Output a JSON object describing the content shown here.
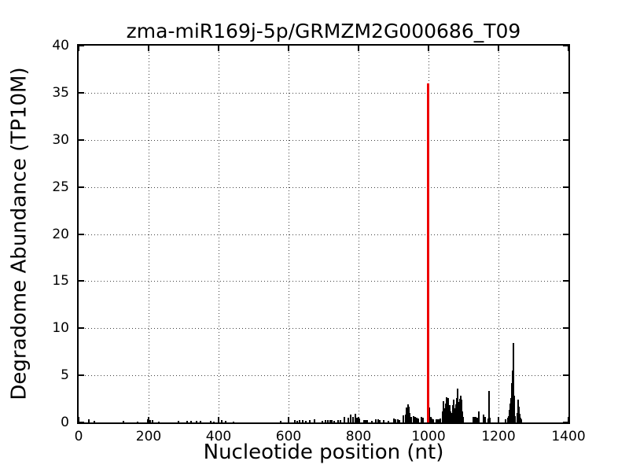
{
  "figure": {
    "background": "#ffffff",
    "frame_color": "#000000"
  },
  "chart_data": {
    "type": "bar",
    "title": "zma-miR169j-5p/GRMZM2G000686_T09",
    "xlabel": "Nucleotide position (nt)",
    "ylabel": "Degradome Abundance (TP10M)",
    "xlim": [
      0,
      1400
    ],
    "ylim": [
      0,
      40
    ],
    "xticks": [
      0,
      200,
      400,
      600,
      800,
      1000,
      1200,
      1400
    ],
    "yticks": [
      0,
      5,
      10,
      15,
      20,
      25,
      30,
      35,
      40
    ],
    "grid": "dotted",
    "grid_color": "#555555",
    "bar_color": "#000000",
    "highlight_color": "#ee0000",
    "highlight_point": {
      "x": 999,
      "y": 36.0,
      "meaning": "miRNA cleavage site peak"
    },
    "points": [
      [
        30,
        0.3
      ],
      [
        45,
        0.15
      ],
      [
        128,
        0.15
      ],
      [
        169,
        0.12
      ],
      [
        198,
        0.3
      ],
      [
        205,
        0.22
      ],
      [
        212,
        0.22
      ],
      [
        230,
        0.12
      ],
      [
        285,
        0.15
      ],
      [
        310,
        0.15
      ],
      [
        322,
        0.18
      ],
      [
        337,
        0.15
      ],
      [
        348,
        0.2
      ],
      [
        377,
        0.15
      ],
      [
        387,
        0.12
      ],
      [
        400,
        0.35
      ],
      [
        408,
        0.25
      ],
      [
        420,
        0.15
      ],
      [
        443,
        0.12
      ],
      [
        577,
        0.2
      ],
      [
        600,
        0.42
      ],
      [
        618,
        0.25
      ],
      [
        625,
        0.2
      ],
      [
        632,
        0.22
      ],
      [
        640,
        0.28
      ],
      [
        650,
        0.2
      ],
      [
        660,
        0.25
      ],
      [
        674,
        0.32
      ],
      [
        697,
        0.2
      ],
      [
        705,
        0.25
      ],
      [
        712,
        0.22
      ],
      [
        718,
        0.25
      ],
      [
        724,
        0.22
      ],
      [
        730,
        0.2
      ],
      [
        742,
        0.22
      ],
      [
        748,
        0.25
      ],
      [
        760,
        0.55
      ],
      [
        770,
        0.5
      ],
      [
        778,
        0.8
      ],
      [
        785,
        0.6
      ],
      [
        790,
        0.9
      ],
      [
        796,
        0.5
      ],
      [
        802,
        0.4
      ],
      [
        815,
        0.25
      ],
      [
        820,
        0.25
      ],
      [
        825,
        0.25
      ],
      [
        838,
        0.2
      ],
      [
        850,
        0.3
      ],
      [
        856,
        0.3
      ],
      [
        861,
        0.25
      ],
      [
        872,
        0.25
      ],
      [
        885,
        0.2
      ],
      [
        900,
        0.4
      ],
      [
        905,
        0.35
      ],
      [
        912,
        0.3
      ],
      [
        917,
        0.25
      ],
      [
        928,
        0.75
      ],
      [
        935,
        0.8
      ],
      [
        938,
        1.6
      ],
      [
        941,
        1.9
      ],
      [
        944,
        1.7
      ],
      [
        947,
        1.0
      ],
      [
        950,
        0.6
      ],
      [
        958,
        0.7
      ],
      [
        962,
        0.6
      ],
      [
        967,
        0.5
      ],
      [
        971,
        0.45
      ],
      [
        980,
        0.6
      ],
      [
        984,
        0.5
      ],
      [
        1003,
        1.6
      ],
      [
        1006,
        0.6
      ],
      [
        1010,
        0.45
      ],
      [
        1013,
        0.35
      ],
      [
        1022,
        0.3
      ],
      [
        1027,
        0.35
      ],
      [
        1031,
        0.3
      ],
      [
        1034,
        0.4
      ],
      [
        1040,
        1.2
      ],
      [
        1043,
        2.25
      ],
      [
        1046,
        1.5
      ],
      [
        1049,
        2.0
      ],
      [
        1051,
        2.65
      ],
      [
        1054,
        1.6
      ],
      [
        1057,
        2.6
      ],
      [
        1060,
        1.8
      ],
      [
        1063,
        1.2
      ],
      [
        1066,
        1.0
      ],
      [
        1069,
        1.8
      ],
      [
        1072,
        2.4
      ],
      [
        1075,
        1.5
      ],
      [
        1078,
        1.9
      ],
      [
        1081,
        2.6
      ],
      [
        1083,
        3.6
      ],
      [
        1086,
        2.2
      ],
      [
        1089,
        2.5
      ],
      [
        1092,
        2.85
      ],
      [
        1094,
        2.4
      ],
      [
        1096,
        1.2
      ],
      [
        1099,
        0.6
      ],
      [
        1128,
        0.6
      ],
      [
        1131,
        0.55
      ],
      [
        1135,
        0.6
      ],
      [
        1139,
        0.5
      ],
      [
        1144,
        1.15
      ],
      [
        1157,
        0.8
      ],
      [
        1162,
        0.6
      ],
      [
        1170,
        0.4
      ],
      [
        1173,
        3.3
      ],
      [
        1176,
        0.5
      ],
      [
        1220,
        0.3
      ],
      [
        1226,
        0.5
      ],
      [
        1229,
        0.7
      ],
      [
        1232,
        1.3
      ],
      [
        1234,
        2.0
      ],
      [
        1236,
        2.6
      ],
      [
        1238,
        4.2
      ],
      [
        1240,
        5.5
      ],
      [
        1242,
        8.4
      ],
      [
        1244,
        2.8
      ],
      [
        1246,
        1.2
      ],
      [
        1248,
        0.7
      ],
      [
        1254,
        1.0
      ],
      [
        1256,
        2.4
      ],
      [
        1258,
        1.7
      ],
      [
        1260,
        0.9
      ],
      [
        1263,
        0.5
      ],
      [
        1266,
        0.3
      ]
    ]
  }
}
